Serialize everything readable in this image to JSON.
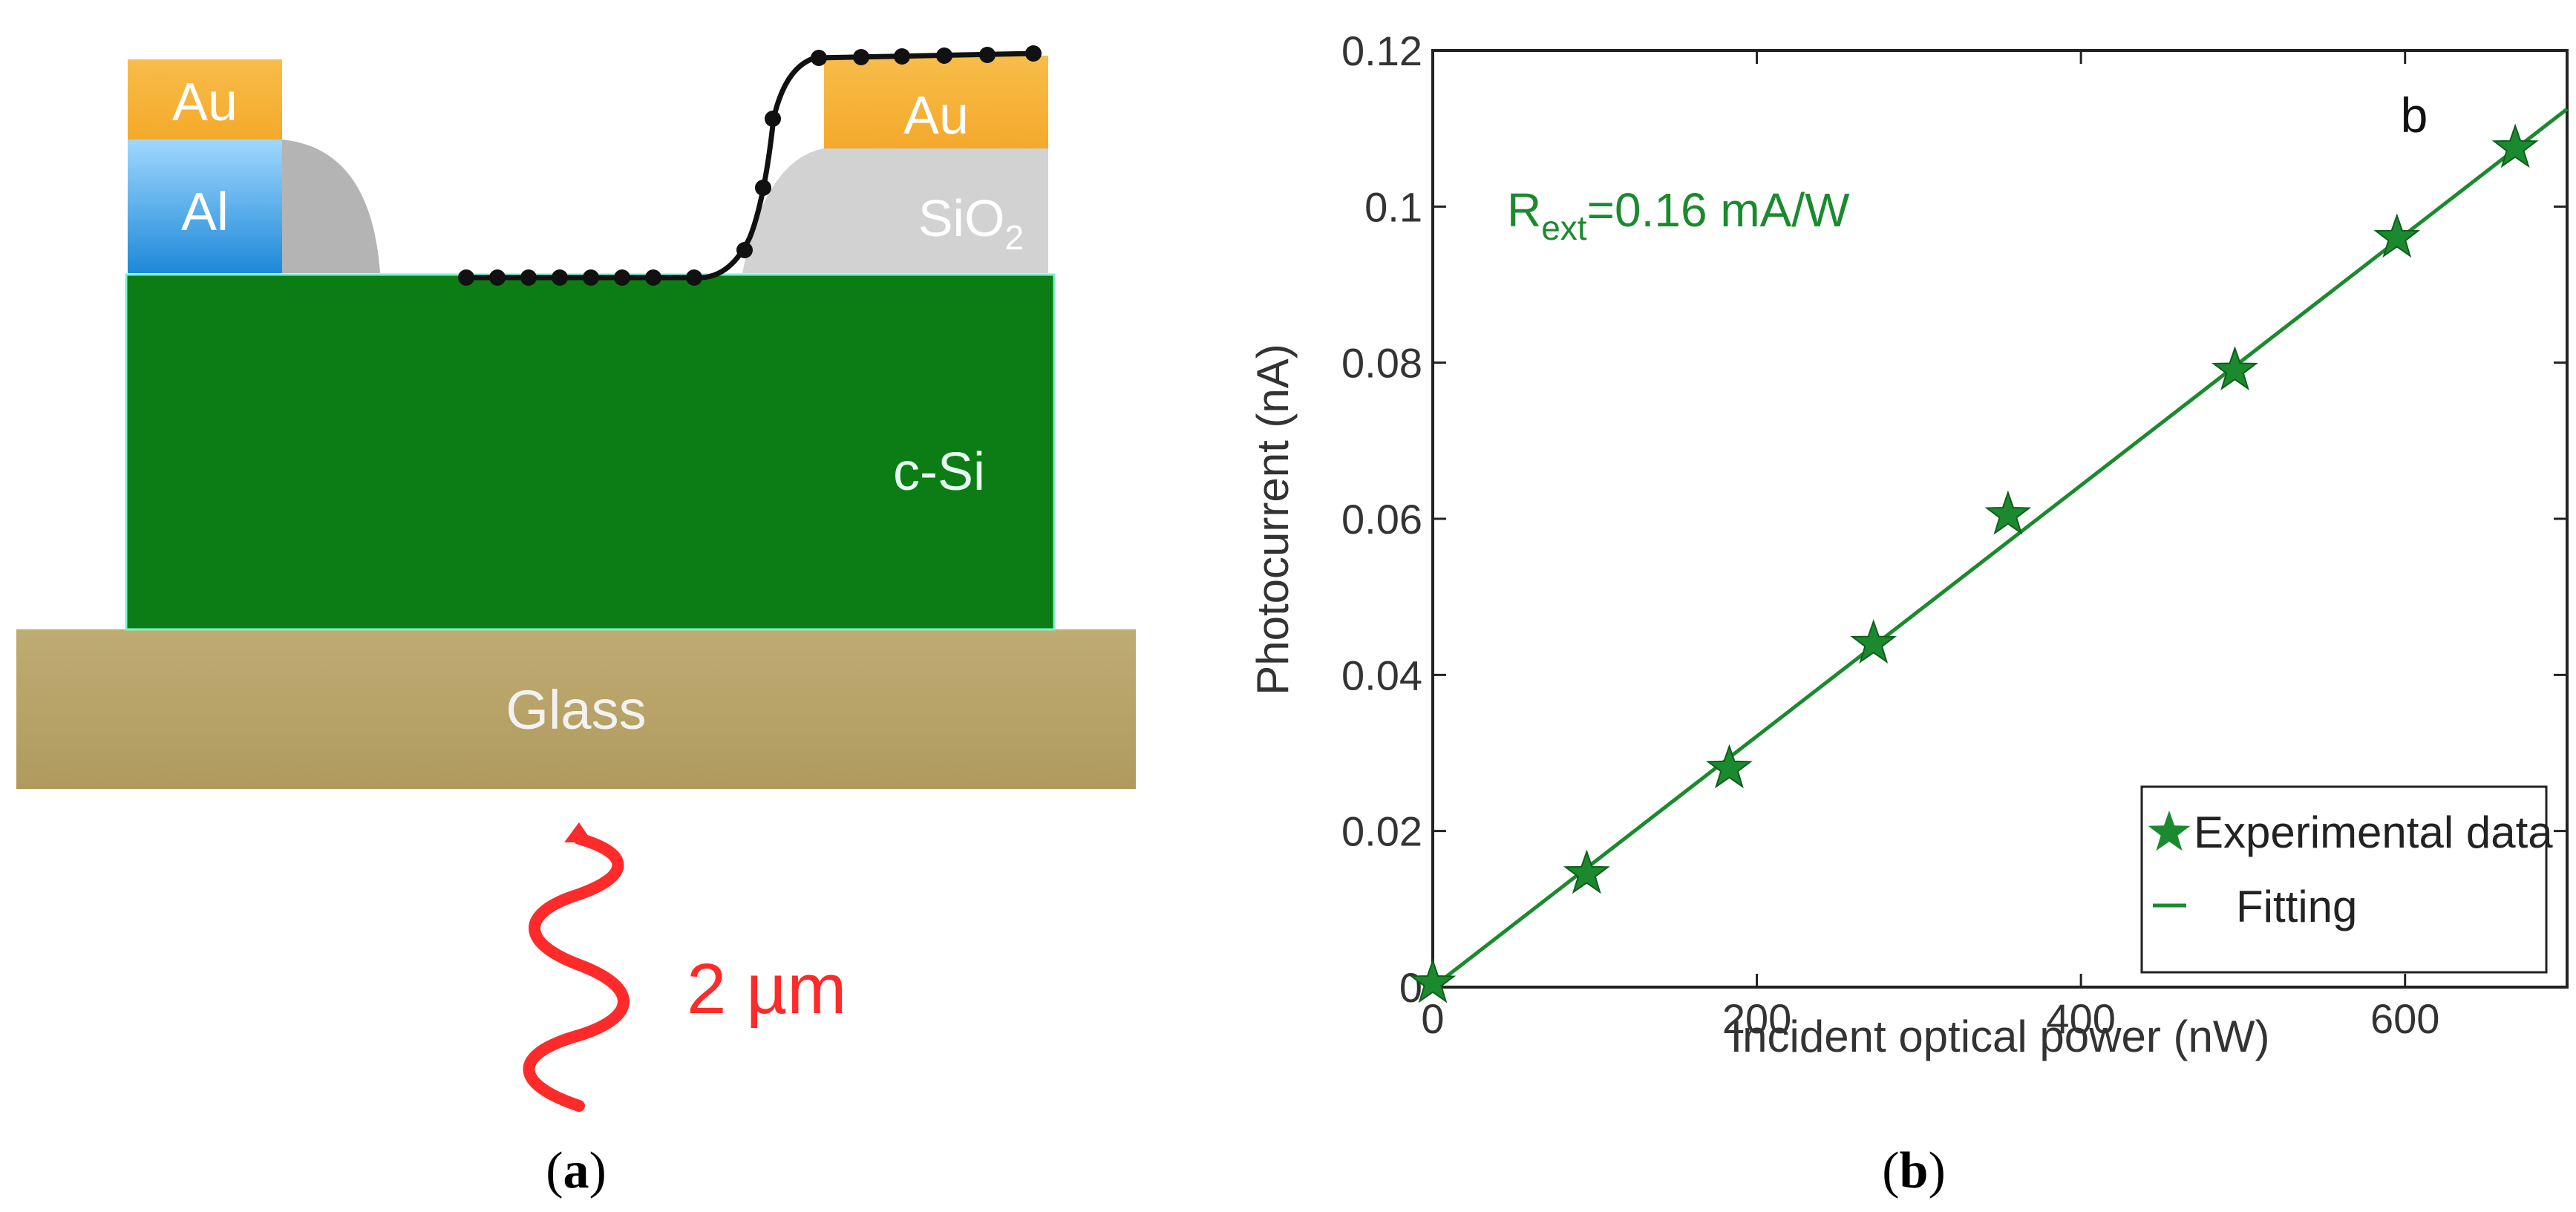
{
  "panel_a": {
    "layers": {
      "au_left": "Au",
      "al": "Al",
      "au_right": "Au",
      "sio2_base": "SiO",
      "sio2_sub": "2",
      "csi": "c-Si",
      "glass": "Glass"
    },
    "illumination": "2 µm",
    "caption_open": "(",
    "caption_letter": "a",
    "caption_close": ")"
  },
  "panel_b": {
    "caption_open": "(",
    "caption_letter": "b",
    "caption_close": ")"
  },
  "chart_data": {
    "type": "scatter",
    "panel_label": "b",
    "annotation_main": "R",
    "annotation_sub": "ext",
    "annotation_rest": "=0.16 mA/W",
    "xlabel": "Incident optical power (nW)",
    "ylabel": "Photocurrent (nA)",
    "xlim": [
      0,
      700
    ],
    "ylim": [
      0,
      0.12
    ],
    "xticks": [
      0,
      200,
      400,
      600
    ],
    "xtick_labels": [
      "0",
      "200",
      "400",
      "600"
    ],
    "yticks": [
      0,
      0.02,
      0.04,
      0.06,
      0.08,
      0.1,
      0.12
    ],
    "ytick_labels": [
      "0",
      "0.02",
      "0.04",
      "0.06",
      "0.08",
      "0.1",
      "0.12"
    ],
    "grid": false,
    "legend_position": "bottom-right",
    "series": [
      {
        "name": "Experimental data",
        "marker": "star",
        "color": "#1b8a2e",
        "x": [
          0,
          95,
          183,
          272,
          355,
          495,
          595,
          668
        ],
        "y": [
          0.0005,
          0.0145,
          0.028,
          0.044,
          0.0605,
          0.079,
          0.096,
          0.1075
        ]
      },
      {
        "name": "Fitting",
        "marker": "line",
        "color": "#1b8a2e",
        "x": [
          0,
          700
        ],
        "y": [
          0,
          0.1125
        ]
      }
    ]
  },
  "colors": {
    "gold": "#f6b53a",
    "aluminum": "#1e90e0",
    "oxide": "#c8c8c8",
    "silicon": "#0b7d14",
    "glass": "#b8a46a",
    "wave": "#ff2a2a",
    "series": "#1b8a2e"
  }
}
